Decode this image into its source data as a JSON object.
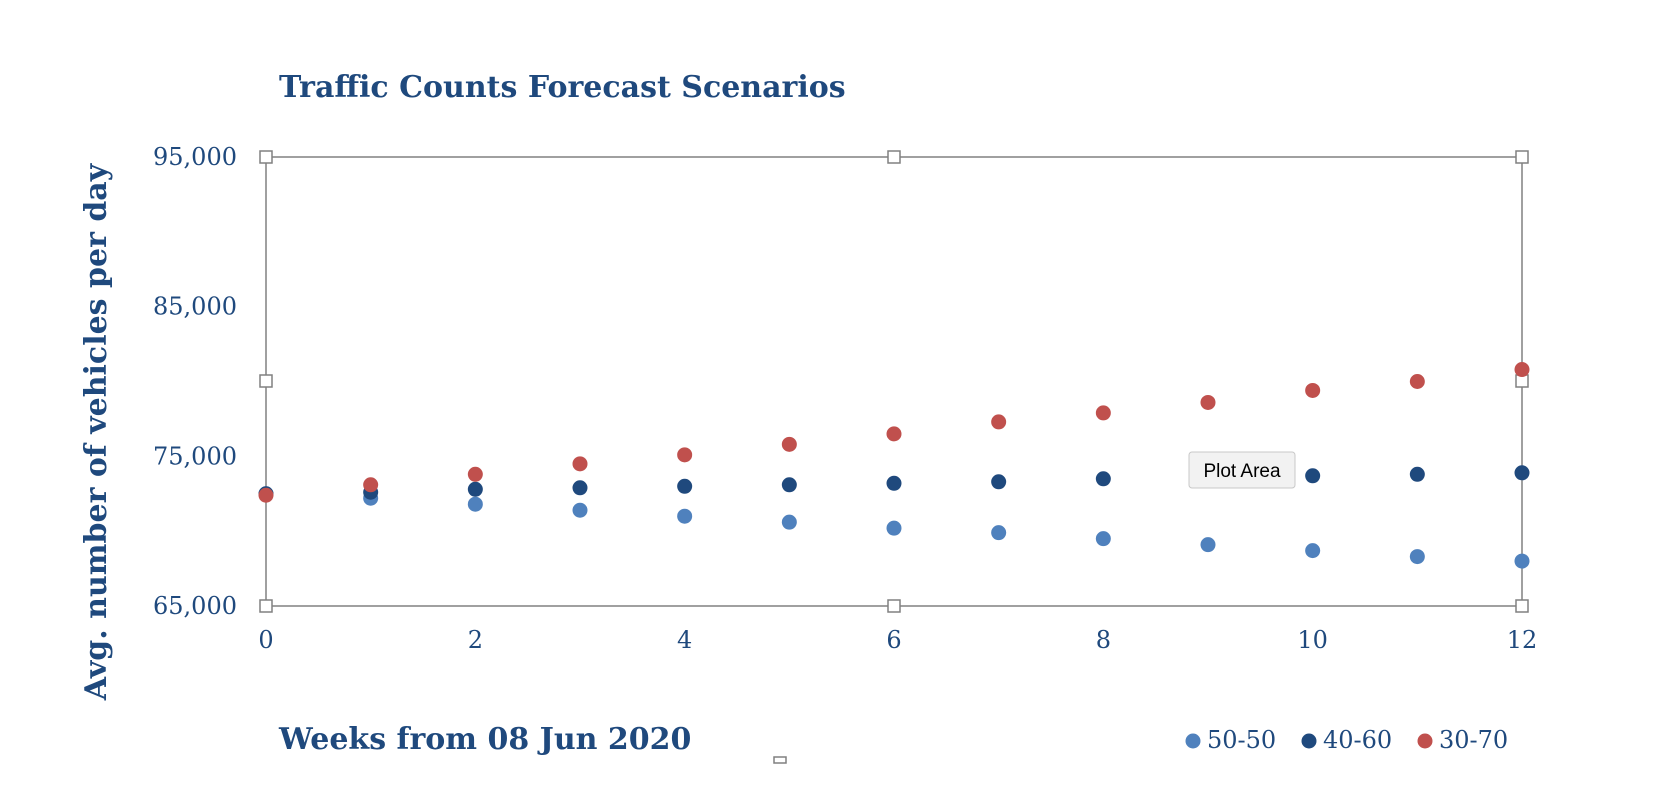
{
  "chart_data": {
    "type": "scatter",
    "title": "Traffic Counts Forecast Scenarios",
    "xlabel": "Weeks from 08 Jun 2020",
    "ylabel": "Avg. number of vehicles per day",
    "xlim": [
      0,
      12
    ],
    "ylim": [
      65000,
      95000
    ],
    "x_ticks": [
      0,
      2,
      4,
      6,
      8,
      10,
      12
    ],
    "y_ticks": [
      65000,
      75000,
      85000,
      95000
    ],
    "y_tick_labels": [
      "65,000",
      "75,000",
      "85,000",
      "95,000"
    ],
    "x_tick_labels": [
      "0",
      "2",
      "4",
      "6",
      "8",
      "10",
      "12"
    ],
    "grid": false,
    "legend_position": "bottom-right",
    "x": [
      0,
      1,
      2,
      3,
      4,
      5,
      6,
      7,
      8,
      9,
      10,
      11,
      12
    ],
    "series": [
      {
        "name": "50-50",
        "color": "#4f81bd",
        "values": [
          72500,
          72200,
          71800,
          71400,
          71000,
          70600,
          70200,
          69900,
          69500,
          69100,
          68700,
          68300,
          68000
        ]
      },
      {
        "name": "40-60",
        "color": "#1f497d",
        "values": [
          72500,
          72600,
          72800,
          72900,
          73000,
          73100,
          73200,
          73300,
          73500,
          73600,
          73700,
          73800,
          73900
        ]
      },
      {
        "name": "30-70",
        "color": "#c0504d",
        "values": [
          72400,
          73100,
          73800,
          74500,
          75100,
          75800,
          76500,
          77300,
          77900,
          78600,
          79400,
          80000,
          80800
        ]
      }
    ]
  },
  "tooltip": {
    "label": "Plot Area"
  },
  "colors": {
    "text": "#1f497d",
    "frame": "#808080",
    "handle_fill": "#ffffff",
    "handle_stroke": "#808080"
  }
}
